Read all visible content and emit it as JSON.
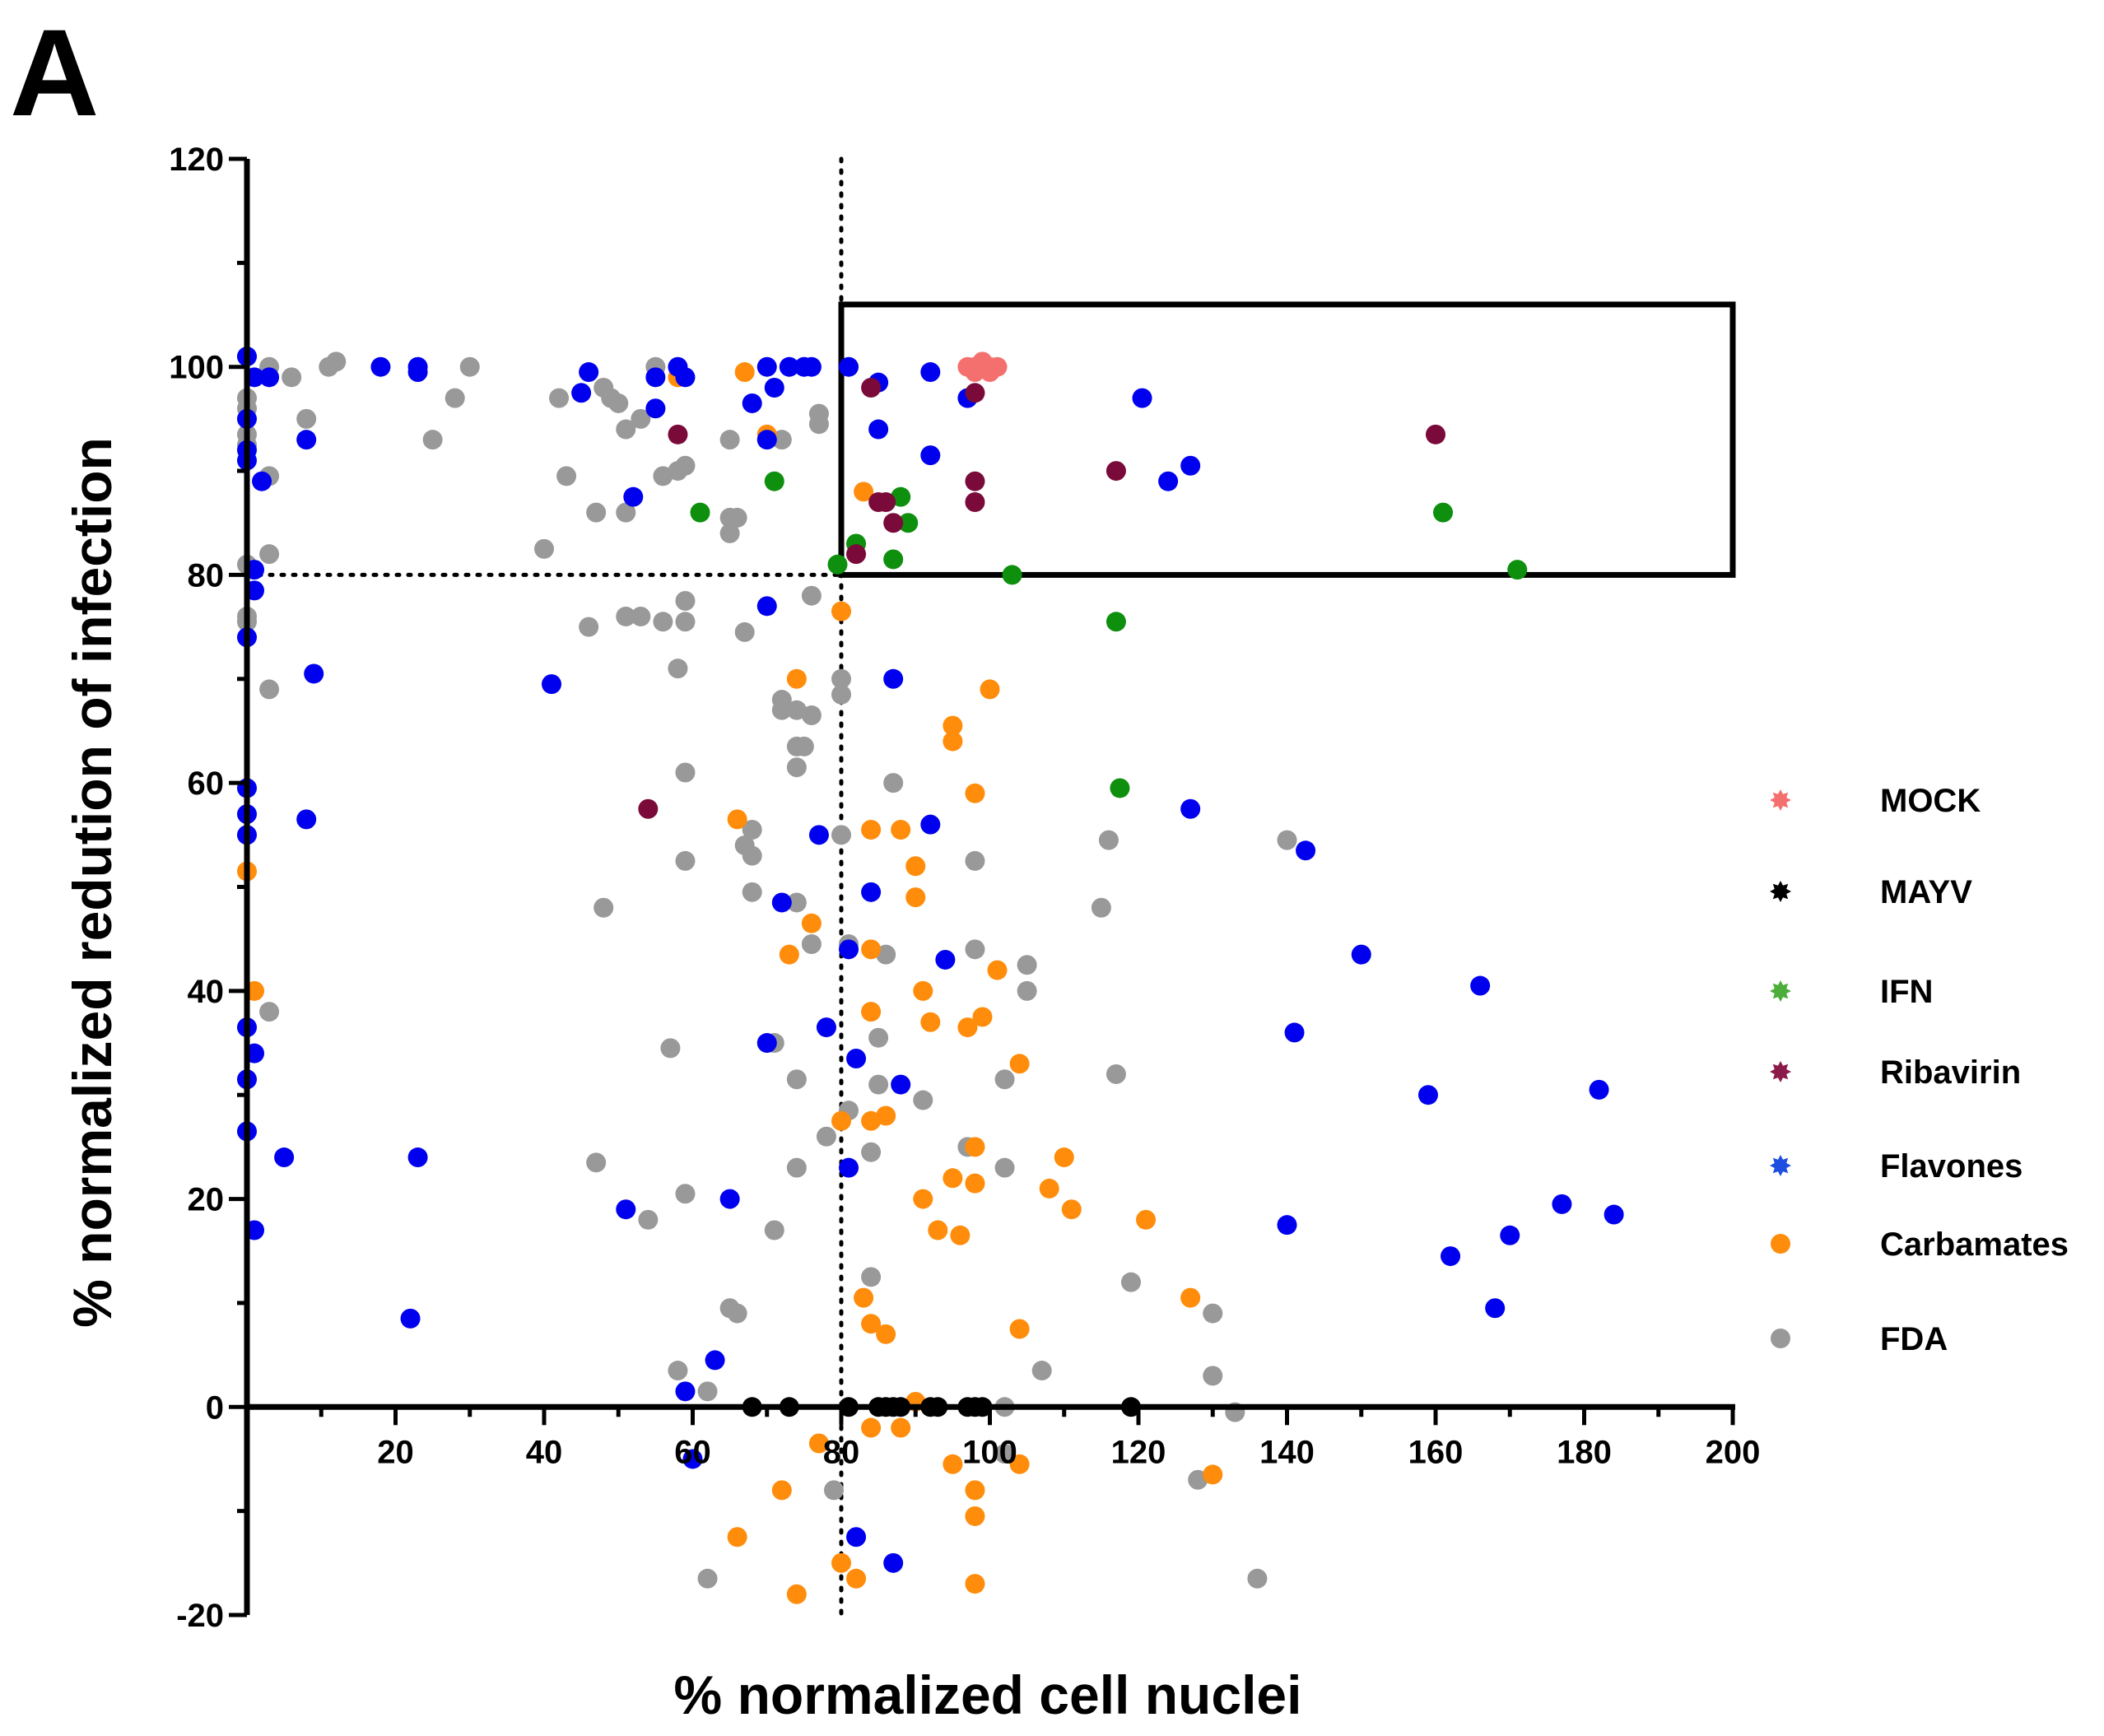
{
  "panel_label": "A",
  "chart_data": {
    "type": "scatter",
    "title": "",
    "xlabel": "% normalized cell nuclei",
    "ylabel": "% normalized redution of infection",
    "xlim": [
      0,
      200
    ],
    "ylim": [
      -20,
      120
    ],
    "x_ticks": [
      20,
      40,
      60,
      80,
      100,
      120,
      140,
      160,
      180,
      200
    ],
    "y_ticks": [
      -20,
      0,
      20,
      40,
      60,
      80,
      100,
      120
    ],
    "reference_lines": {
      "x": 80,
      "y": 80
    },
    "highlight_box": {
      "x": [
        80,
        200
      ],
      "y": [
        80,
        106
      ]
    },
    "legend_position": "right",
    "series": [
      {
        "name": "MOCK",
        "color": "#f4706e",
        "legend_color": "#f4706e",
        "points": [
          [
            97,
            100
          ],
          [
            98,
            100
          ],
          [
            99,
            100
          ],
          [
            100,
            100
          ],
          [
            101,
            100
          ],
          [
            98,
            99.5
          ],
          [
            100,
            99.5
          ],
          [
            99,
            100.5
          ]
        ]
      },
      {
        "name": "MAYV",
        "color": "#000000",
        "legend_color": "#000000",
        "points": [
          [
            68,
            0
          ],
          [
            73,
            0
          ],
          [
            81,
            0
          ],
          [
            85,
            0
          ],
          [
            86,
            0
          ],
          [
            87,
            0
          ],
          [
            88,
            0
          ],
          [
            92,
            0
          ],
          [
            93,
            0
          ],
          [
            97,
            0
          ],
          [
            98,
            0
          ],
          [
            99,
            0
          ],
          [
            119,
            0
          ]
        ]
      },
      {
        "name": "IFN",
        "color": "#0e8f0e",
        "legend_color": "#4cae3a",
        "points": [
          [
            61,
            86
          ],
          [
            71,
            89
          ],
          [
            79.5,
            81
          ],
          [
            82,
            83
          ],
          [
            87,
            81.5
          ],
          [
            88,
            87.5
          ],
          [
            89,
            85
          ],
          [
            103,
            80
          ],
          [
            117,
            75.5
          ],
          [
            117.5,
            59.5
          ],
          [
            161,
            86
          ],
          [
            171,
            80.5
          ]
        ]
      },
      {
        "name": "Ribavirin",
        "color": "#7a0a3a",
        "legend_color": "#8a1a4a",
        "points": [
          [
            58,
            93.5
          ],
          [
            54,
            57.5
          ],
          [
            84,
            98
          ],
          [
            85,
            87
          ],
          [
            86,
            87
          ],
          [
            82,
            82
          ],
          [
            87,
            85
          ],
          [
            98,
            97.5
          ],
          [
            98,
            89
          ],
          [
            98,
            87
          ],
          [
            117,
            90
          ],
          [
            160,
            93.5
          ]
        ]
      },
      {
        "name": "Flavones",
        "color": "#0000ee",
        "legend_color": "#1f4fe0",
        "points": [
          [
            0,
            101
          ],
          [
            1,
            99
          ],
          [
            3,
            99
          ],
          [
            0,
            95
          ],
          [
            0,
            92
          ],
          [
            0,
            91
          ],
          [
            2,
            89
          ],
          [
            8,
            93
          ],
          [
            18,
            100
          ],
          [
            23,
            99.5
          ],
          [
            23,
            100
          ],
          [
            46,
            99.5
          ],
          [
            45,
            97.5
          ],
          [
            55,
            99
          ],
          [
            58,
            100
          ],
          [
            59,
            99
          ],
          [
            55,
            96
          ],
          [
            52,
            87.5
          ],
          [
            70,
            100
          ],
          [
            71,
            98
          ],
          [
            68,
            96.5
          ],
          [
            70,
            93
          ],
          [
            73,
            100
          ],
          [
            75,
            100
          ],
          [
            76,
            100
          ],
          [
            81,
            100
          ],
          [
            85,
            98.5
          ],
          [
            92,
            99.5
          ],
          [
            85,
            94
          ],
          [
            92,
            91.5
          ],
          [
            97,
            97
          ],
          [
            120.5,
            97
          ],
          [
            124,
            89
          ],
          [
            127,
            90.5
          ],
          [
            1,
            80.5
          ],
          [
            1,
            78.5
          ],
          [
            0,
            74
          ],
          [
            9,
            70.5
          ],
          [
            41,
            69.5
          ],
          [
            70,
            77
          ],
          [
            87,
            70
          ],
          [
            0,
            59.5
          ],
          [
            0,
            57
          ],
          [
            0,
            55
          ],
          [
            8,
            56.5
          ],
          [
            77,
            55
          ],
          [
            92,
            56
          ],
          [
            84,
            49.5
          ],
          [
            72,
            48.5
          ],
          [
            127,
            57.5
          ],
          [
            142.5,
            53.5
          ],
          [
            81,
            44
          ],
          [
            94,
            43
          ],
          [
            150,
            43.5
          ],
          [
            166,
            40.5
          ],
          [
            0,
            36.5
          ],
          [
            1,
            34
          ],
          [
            0,
            31.5
          ],
          [
            0,
            26.5
          ],
          [
            5,
            24
          ],
          [
            23,
            24
          ],
          [
            70,
            35
          ],
          [
            78,
            36.5
          ],
          [
            82,
            33.5
          ],
          [
            88,
            31
          ],
          [
            141,
            36
          ],
          [
            159,
            30
          ],
          [
            182,
            30.5
          ],
          [
            51,
            19
          ],
          [
            65,
            20
          ],
          [
            81,
            23
          ],
          [
            1,
            17
          ],
          [
            140,
            17.5
          ],
          [
            162,
            14.5
          ],
          [
            170,
            16.5
          ],
          [
            177,
            19.5
          ],
          [
            184,
            18.5
          ],
          [
            168,
            9.5
          ],
          [
            22,
            8.5
          ],
          [
            63,
            4.5
          ],
          [
            59,
            1.5
          ],
          [
            60,
            -5
          ],
          [
            82,
            -12.5
          ],
          [
            87,
            -15
          ]
        ]
      },
      {
        "name": "Carbamates",
        "color": "#ff8c0a",
        "legend_color": "#ff8c0a",
        "points": [
          [
            58,
            99
          ],
          [
            67,
            99.5
          ],
          [
            70,
            93.5
          ],
          [
            83,
            88
          ],
          [
            80,
            76.5
          ],
          [
            74,
            70
          ],
          [
            95,
            65.5
          ],
          [
            95,
            64
          ],
          [
            100,
            69
          ],
          [
            98,
            59
          ],
          [
            66,
            56.5
          ],
          [
            84,
            55.5
          ],
          [
            88,
            55.5
          ],
          [
            90,
            52
          ],
          [
            90,
            49
          ],
          [
            76,
            46.5
          ],
          [
            73,
            43.5
          ],
          [
            84,
            44
          ],
          [
            101,
            42
          ],
          [
            0,
            51.5
          ],
          [
            1,
            40
          ],
          [
            84,
            38
          ],
          [
            91,
            40
          ],
          [
            92,
            37
          ],
          [
            97,
            36.5
          ],
          [
            99,
            37.5
          ],
          [
            104,
            33
          ],
          [
            80,
            27.5
          ],
          [
            84,
            27.5
          ],
          [
            86,
            28
          ],
          [
            98,
            25
          ],
          [
            110,
            24
          ],
          [
            91,
            20
          ],
          [
            95,
            22
          ],
          [
            98,
            21.5
          ],
          [
            108,
            21
          ],
          [
            111,
            19
          ],
          [
            93,
            17
          ],
          [
            96,
            16.5
          ],
          [
            121,
            18
          ],
          [
            127,
            10.5
          ],
          [
            83,
            10.5
          ],
          [
            84,
            8
          ],
          [
            86,
            7
          ],
          [
            104,
            7.5
          ],
          [
            84,
            -2
          ],
          [
            88,
            -2
          ],
          [
            90,
            0.5
          ],
          [
            77,
            -3.5
          ],
          [
            95,
            -5.5
          ],
          [
            104,
            -5.5
          ],
          [
            130,
            -6.5
          ],
          [
            72,
            -8
          ],
          [
            98,
            -8
          ],
          [
            98,
            -10.5
          ],
          [
            66,
            -12.5
          ],
          [
            80,
            -15
          ],
          [
            82,
            -16.5
          ],
          [
            74,
            -18
          ],
          [
            98,
            -17
          ]
        ]
      },
      {
        "name": "FDA",
        "color": "#999999",
        "legend_color": "#999999",
        "points": [
          [
            0,
            101
          ],
          [
            3,
            100
          ],
          [
            6,
            99
          ],
          [
            11,
            100
          ],
          [
            12,
            100.5
          ],
          [
            30,
            100
          ],
          [
            0,
            97
          ],
          [
            0,
            96
          ],
          [
            28,
            97
          ],
          [
            42,
            97
          ],
          [
            48,
            98
          ],
          [
            49,
            97
          ],
          [
            50,
            96.5
          ],
          [
            51,
            94
          ],
          [
            53,
            95
          ],
          [
            55,
            100
          ],
          [
            0,
            93.5
          ],
          [
            0,
            92.5
          ],
          [
            8,
            95
          ],
          [
            25,
            93
          ],
          [
            65,
            93
          ],
          [
            72,
            93
          ],
          [
            77,
            95.5
          ],
          [
            77,
            94.5
          ],
          [
            73,
            100
          ],
          [
            75,
            100
          ],
          [
            3,
            89.5
          ],
          [
            43,
            89.5
          ],
          [
            56,
            89.5
          ],
          [
            58,
            90
          ],
          [
            59,
            90.5
          ],
          [
            47,
            86
          ],
          [
            51,
            86
          ],
          [
            65,
            85.5
          ],
          [
            66,
            85.5
          ],
          [
            65,
            84
          ],
          [
            40,
            82.5
          ],
          [
            0,
            81
          ],
          [
            3,
            82
          ],
          [
            76,
            78
          ],
          [
            59,
            77.5
          ],
          [
            0,
            76
          ],
          [
            0,
            75.5
          ],
          [
            46,
            75
          ],
          [
            51,
            76
          ],
          [
            53,
            76
          ],
          [
            56,
            75.5
          ],
          [
            59,
            75.5
          ],
          [
            67,
            74.5
          ],
          [
            58,
            71
          ],
          [
            3,
            69
          ],
          [
            72,
            68
          ],
          [
            72,
            67
          ],
          [
            74,
            67
          ],
          [
            76,
            66.5
          ],
          [
            80,
            70
          ],
          [
            80,
            68.5
          ],
          [
            74,
            63.5
          ],
          [
            75,
            63.5
          ],
          [
            74,
            61.5
          ],
          [
            59,
            61
          ],
          [
            87,
            60
          ],
          [
            80,
            55
          ],
          [
            68,
            55.5
          ],
          [
            67,
            54
          ],
          [
            68,
            53
          ],
          [
            59,
            52.5
          ],
          [
            98,
            52.5
          ],
          [
            68,
            49.5
          ],
          [
            48,
            48
          ],
          [
            74,
            48.5
          ],
          [
            116,
            54.5
          ],
          [
            115,
            48
          ],
          [
            140,
            54.5
          ],
          [
            76,
            44.5
          ],
          [
            81,
            44.5
          ],
          [
            86,
            43.5
          ],
          [
            98,
            44
          ],
          [
            105,
            42.5
          ],
          [
            105,
            40
          ],
          [
            3,
            38
          ],
          [
            57,
            34.5
          ],
          [
            85,
            35.5
          ],
          [
            71,
            35
          ],
          [
            74,
            31.5
          ],
          [
            85,
            31
          ],
          [
            91,
            29.5
          ],
          [
            102,
            31.5
          ],
          [
            117,
            32
          ],
          [
            81,
            28.5
          ],
          [
            78,
            26
          ],
          [
            84,
            24.5
          ],
          [
            97,
            25
          ],
          [
            102,
            23
          ],
          [
            47,
            23.5
          ],
          [
            59,
            20.5
          ],
          [
            54,
            18
          ],
          [
            74,
            23
          ],
          [
            71,
            17
          ],
          [
            84,
            12.5
          ],
          [
            65,
            9.5
          ],
          [
            66,
            9
          ],
          [
            119,
            12
          ],
          [
            130,
            9
          ],
          [
            58,
            3.5
          ],
          [
            62,
            1.5
          ],
          [
            107,
            3.5
          ],
          [
            130,
            3
          ],
          [
            102,
            0
          ],
          [
            133,
            -0.5
          ],
          [
            79,
            -8
          ],
          [
            102,
            -4.5
          ],
          [
            128,
            -7
          ],
          [
            62,
            -16.5
          ],
          [
            136,
            -16.5
          ]
        ]
      }
    ]
  }
}
